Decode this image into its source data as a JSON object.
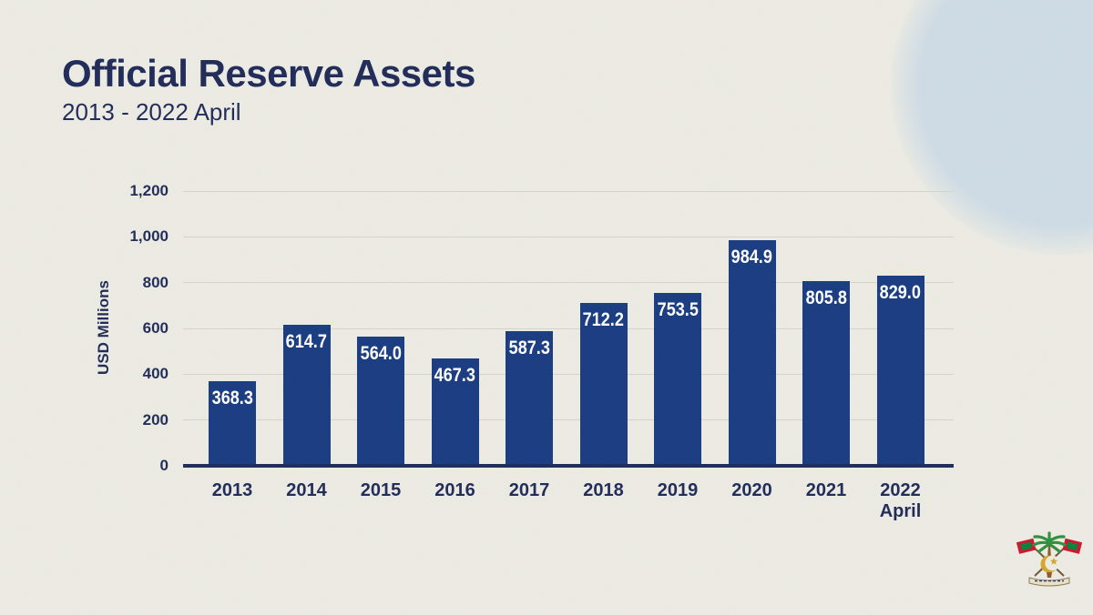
{
  "header": {
    "title": "Official Reserve Assets",
    "subtitle": "2013 - 2022 April"
  },
  "chart_data": {
    "type": "bar",
    "title": "Official Reserve Assets",
    "subtitle": "2013 - 2022 April",
    "categories": [
      "2013",
      "2014",
      "2015",
      "2016",
      "2017",
      "2018",
      "2019",
      "2020",
      "2021",
      "2022 April"
    ],
    "values": [
      368.3,
      614.7,
      564.0,
      467.3,
      587.3,
      712.2,
      753.5,
      984.9,
      805.8,
      829.0
    ],
    "value_labels": [
      "368.3",
      "614.7",
      "564.0",
      "467.3",
      "587.3",
      "712.2",
      "753.5",
      "984.9",
      "805.8",
      "829.0"
    ],
    "xlabel": "",
    "ylabel": "USD Millions",
    "ylim": [
      0,
      1200
    ],
    "ytick_step": 200,
    "yticks": [
      "0",
      "200",
      "400",
      "600",
      "800",
      "1,000",
      "1,200"
    ],
    "grid": true,
    "legend": false,
    "bar_color": "#173a80",
    "value_label_color": "#ffffff",
    "axis_color": "#1b2a5b",
    "text_color": "#1e2957"
  },
  "branding": {
    "emblem": "maldives-national-emblem"
  },
  "colors": {
    "background": "#edece4",
    "accent_navy": "#1e2957",
    "bar_blue": "#173a80",
    "gridline": "#d6d4ca",
    "decorative_circle": "#bad2e7"
  }
}
